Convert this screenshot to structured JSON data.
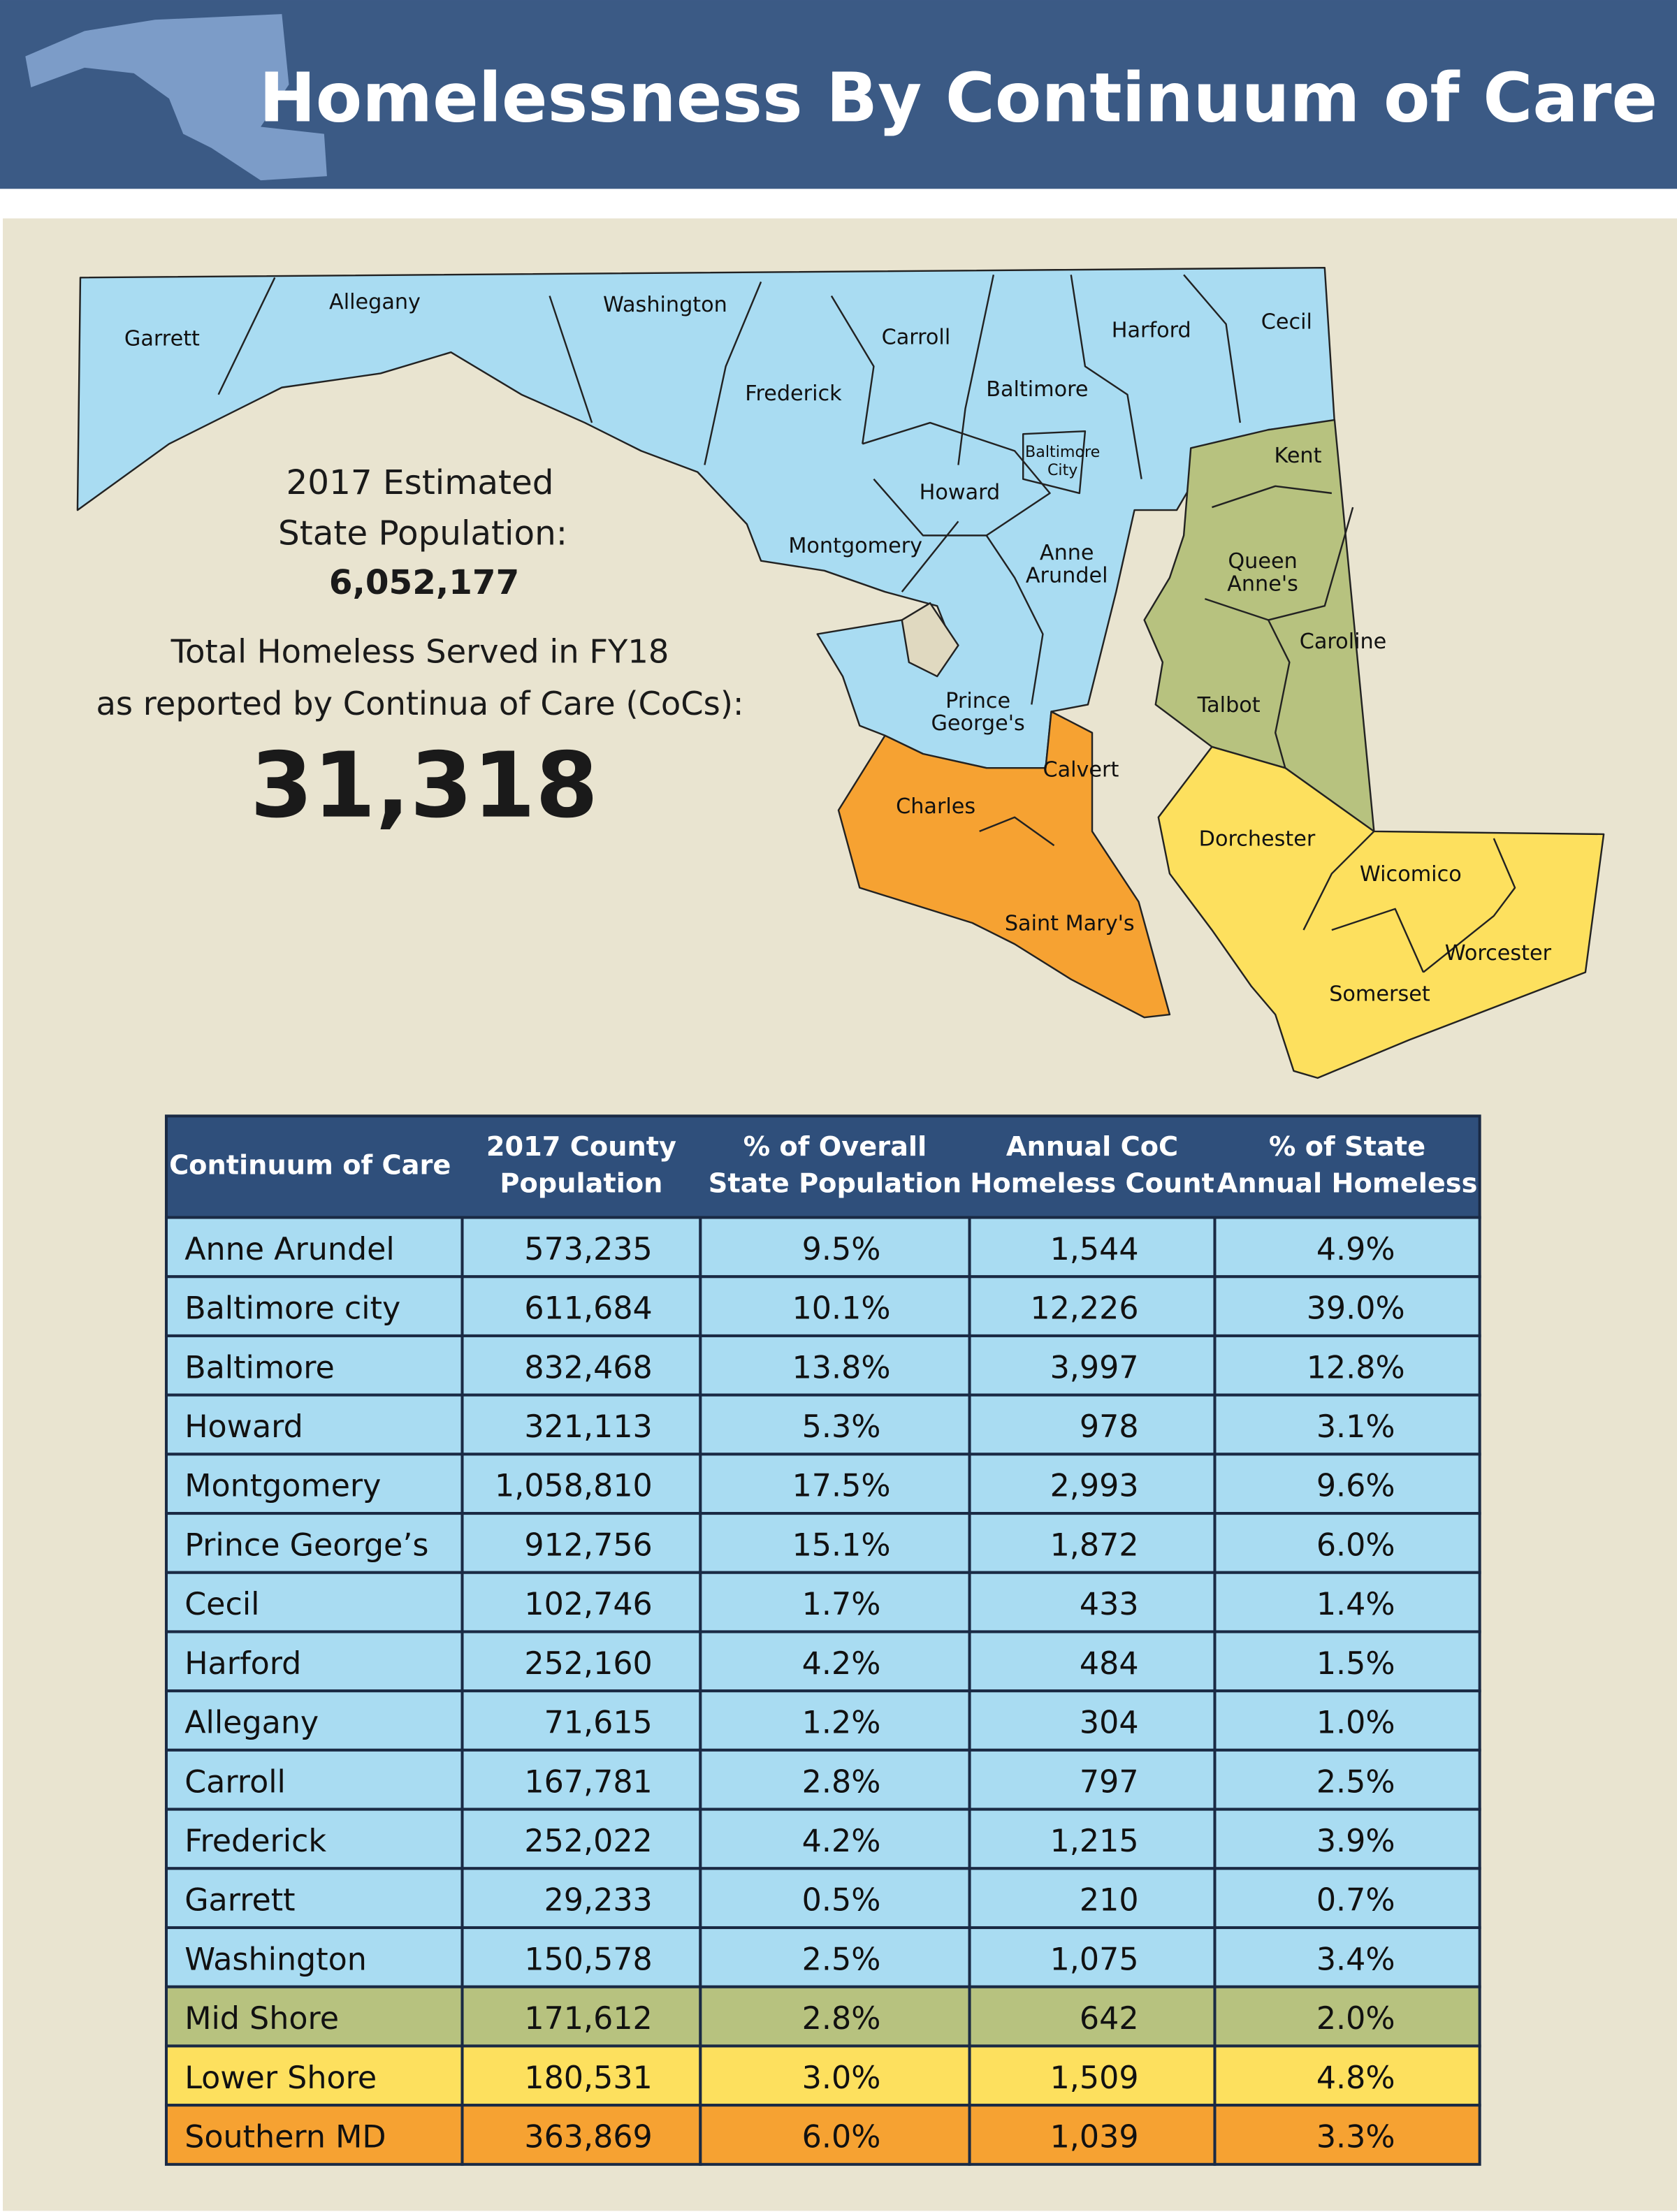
{
  "header": {
    "title": "Homelessness By Continuum of Care"
  },
  "map": {
    "labels": [
      [
        "Garrett"
      ],
      [
        "Allegany"
      ],
      [
        "Washington"
      ],
      [
        "Frederick"
      ],
      [
        "Carroll"
      ],
      [
        "Baltimore"
      ],
      [
        "Harford"
      ],
      [
        "Cecil"
      ],
      [
        "Baltimore",
        "City"
      ],
      [
        "Howard"
      ],
      [
        "Montgomery"
      ],
      [
        "Anne",
        "Arundel"
      ],
      [
        "Prince",
        "George's"
      ],
      [
        "Calvert"
      ],
      [
        "Charles"
      ],
      [
        "Saint Mary's"
      ],
      [
        "Kent"
      ],
      [
        "Queen",
        "Anne's"
      ],
      [
        "Caroline"
      ],
      [
        "Talbot"
      ],
      [
        "Dorchester"
      ],
      [
        "Wicomico"
      ],
      [
        "Worcester"
      ],
      [
        "Somerset"
      ]
    ]
  },
  "stats": {
    "population_label": [
      "2017 Estimated",
      "State Population:"
    ],
    "population": "6,052,177",
    "homeless_label": [
      "Total Homeless Served in FY18",
      "as reported by Continua of Care (CoCs):"
    ],
    "homeless_total": "31,318"
  },
  "table": {
    "header": [
      [
        "Continuum of Care"
      ],
      [
        "2017 County",
        "Population"
      ],
      [
        "% of Overall",
        "State Population"
      ],
      [
        "Annual CoC",
        "Homeless Count"
      ],
      [
        "% of State",
        "Annual Homeless"
      ]
    ],
    "rows": [
      {
        "color": "#a9dcf2",
        "cells": [
          "Anne Arundel",
          "573,235",
          "9.5%",
          "1,544",
          "4.9%"
        ]
      },
      {
        "color": "#a9dcf2",
        "cells": [
          "Baltimore city",
          "611,684",
          "10.1%",
          "12,226",
          "39.0%"
        ]
      },
      {
        "color": "#a9dcf2",
        "cells": [
          "Baltimore",
          "832,468",
          "13.8%",
          "3,997",
          "12.8%"
        ]
      },
      {
        "color": "#a9dcf2",
        "cells": [
          "Howard",
          "321,113",
          "5.3%",
          "978",
          "3.1%"
        ]
      },
      {
        "color": "#a9dcf2",
        "cells": [
          "Montgomery",
          "1,058,810",
          "17.5%",
          "2,993",
          "9.6%"
        ]
      },
      {
        "color": "#a9dcf2",
        "cells": [
          "Prince George’s",
          "912,756",
          "15.1%",
          "1,872",
          "6.0%"
        ]
      },
      {
        "color": "#a9dcf2",
        "cells": [
          "Cecil",
          "102,746",
          "1.7%",
          "433",
          "1.4%"
        ]
      },
      {
        "color": "#a9dcf2",
        "cells": [
          "Harford",
          "252,160",
          "4.2%",
          "484",
          "1.5%"
        ]
      },
      {
        "color": "#a9dcf2",
        "cells": [
          "Allegany",
          "71,615",
          "1.2%",
          "304",
          "1.0%"
        ]
      },
      {
        "color": "#a9dcf2",
        "cells": [
          "Carroll",
          "167,781",
          "2.8%",
          "797",
          "2.5%"
        ]
      },
      {
        "color": "#a9dcf2",
        "cells": [
          "Frederick",
          "252,022",
          "4.2%",
          "1,215",
          "3.9%"
        ]
      },
      {
        "color": "#a9dcf2",
        "cells": [
          "Garrett",
          "29,233",
          "0.5%",
          "210",
          "0.7%"
        ]
      },
      {
        "color": "#a9dcf2",
        "cells": [
          "Washington",
          "150,578",
          "2.5%",
          "1,075",
          "3.4%"
        ]
      },
      {
        "color": "#b7c27f",
        "cells": [
          "Mid Shore",
          "171,612",
          "2.8%",
          "642",
          "2.0%"
        ]
      },
      {
        "color": "#fde05e",
        "cells": [
          "Lower Shore",
          "180,531",
          "3.0%",
          "1,509",
          "4.8%"
        ]
      },
      {
        "color": "#f6a232",
        "cells": [
          "Southern MD",
          "363,869",
          "6.0%",
          "1,039",
          "3.3%"
        ]
      }
    ]
  }
}
